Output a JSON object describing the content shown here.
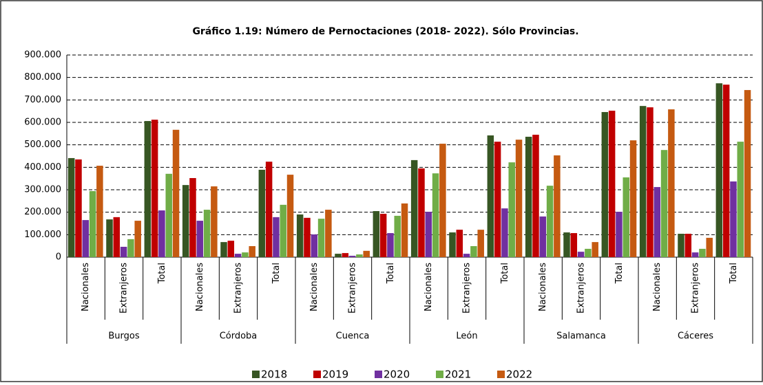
{
  "chart_data": {
    "type": "bar",
    "title": "Gráfico 1.19: Número de Pernoctaciones (2018- 2022). Sólo Provincias.",
    "categories": [
      "Nacionales",
      "Extranjeros",
      "Total",
      "Nacionales",
      "Extranjeros",
      "Total",
      "Nacionales",
      "Extranjeros",
      "Total",
      "Nacionales",
      "Extranjeros",
      "Total",
      "Nacionales",
      "Extranjeros",
      "Total",
      "Nacionales",
      "Extranjeros",
      "Total"
    ],
    "group_labels": [
      "Burgos",
      "Córdoba",
      "Cuenca",
      "León",
      "Salamanca",
      "Cáceres"
    ],
    "series": [
      {
        "name": "2018",
        "color": "#375623",
        "values": [
          441000,
          168000,
          606000,
          321000,
          67000,
          389000,
          190000,
          15000,
          205000,
          432000,
          110000,
          542000,
          536000,
          110000,
          646000,
          673000,
          104000,
          774000
        ]
      },
      {
        "name": "2019",
        "color": "#c00000",
        "values": [
          435000,
          178000,
          612000,
          352000,
          73000,
          425000,
          175000,
          18000,
          193000,
          395000,
          122000,
          514000,
          545000,
          107000,
          652000,
          667000,
          104000,
          768000
        ]
      },
      {
        "name": "2020",
        "color": "#7030a0",
        "values": [
          165000,
          46000,
          208000,
          162000,
          15000,
          178000,
          101000,
          6000,
          107000,
          202000,
          15000,
          217000,
          181000,
          24000,
          202000,
          312000,
          21000,
          337000
        ]
      },
      {
        "name": "2021",
        "color": "#70ad47",
        "values": [
          294000,
          80000,
          371000,
          211000,
          21000,
          233000,
          171000,
          12000,
          184000,
          373000,
          49000,
          422000,
          318000,
          37000,
          355000,
          477000,
          37000,
          514000
        ]
      },
      {
        "name": "2022",
        "color": "#c55a11",
        "values": [
          407000,
          162000,
          567000,
          315000,
          49000,
          367000,
          211000,
          28000,
          239000,
          505000,
          122000,
          523000,
          453000,
          67000,
          520000,
          658000,
          86000,
          744000
        ]
      }
    ],
    "ylim": [
      0,
      900000
    ],
    "yticks": [
      0,
      {
        "value": 100000,
        "label": "100.000"
      },
      {
        "value": 200000,
        "label": "200.000"
      },
      {
        "value": 300000,
        "label": "300.000"
      },
      {
        "value": 400000,
        "label": "400.000"
      },
      {
        "value": 500000,
        "label": "500.000"
      },
      {
        "value": 600000,
        "label": "600.000"
      },
      {
        "value": 700000,
        "label": "700.000"
      },
      {
        "value": 800000,
        "label": "800.000"
      },
      {
        "value": 900000,
        "label": "900.000"
      }
    ],
    "grid": true,
    "legend": "bottom"
  }
}
